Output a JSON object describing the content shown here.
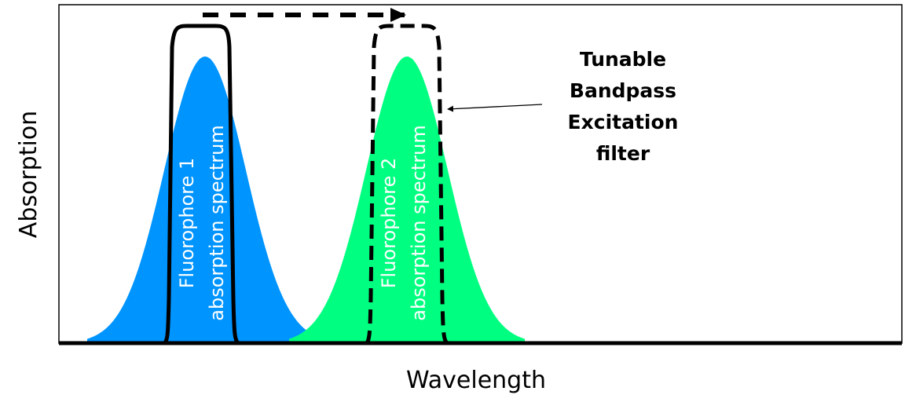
{
  "axes": {
    "x_label": "Wavelength",
    "y_label": "Absorption"
  },
  "spectra": [
    {
      "label_line1": "Fluorophore 1",
      "label_line2": "absorption spectrum",
      "color": "#0094FF"
    },
    {
      "label_line1": "Fluorophore 2",
      "label_line2": "absorption spectrum",
      "color": "#00FF80"
    }
  ],
  "annotation": {
    "lines": [
      "Tunable",
      "Bandpass",
      "Excitation",
      "filter"
    ]
  }
}
